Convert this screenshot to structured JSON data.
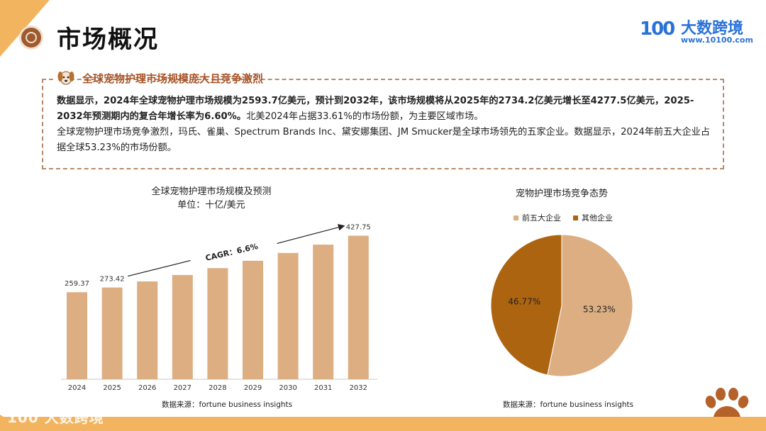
{
  "header": {
    "title": "市场概况",
    "logo_mark": "100",
    "logo_text": "大数跨境",
    "logo_url": "www.10100.com"
  },
  "info_box": {
    "title": "全球宠物护理市场规模庞大且竞争激烈",
    "para1_bold": "数据显示，2024年全球宠物护理市场规模为2593.7亿美元，预计到2032年，该市场规模将从2025年的2734.2亿美元增长至4277.5亿美元，2025-2032年预测期内的复合年增长率为6.60%。",
    "para1_rest": "北美2024年占据33.61%的市场份额，为主要区域市场。",
    "para2": "全球宠物护理市场竞争激烈，玛氏、雀巢、Spectrum Brands Inc、黛安娜集团、JM Smucker是全球市场领先的五家企业。数据显示，2024年前五大企业占据全球53.23%的市场份额。"
  },
  "colors": {
    "accent": "#f3b45f",
    "bar": "#dcae82",
    "pie_top5": "#dcae82",
    "pie_other": "#ad6410",
    "box_border": "#b98a6a",
    "box_title": "#a8562a"
  },
  "chart_data": [
    {
      "type": "bar",
      "title": "全球宠物护理市场规模及预测",
      "subtitle": "单位：十亿/美元",
      "categories": [
        "2024",
        "2025",
        "2026",
        "2027",
        "2028",
        "2029",
        "2030",
        "2031",
        "2032"
      ],
      "values": [
        259.37,
        273.42,
        291.5,
        310.7,
        331.2,
        353.1,
        376.4,
        401.2,
        427.75
      ],
      "data_labels": [
        "259.37",
        "273.42",
        "",
        "",
        "",
        "",
        "",
        "",
        "427.75"
      ],
      "annotation": "CAGR：6.6%",
      "ylim": [
        0,
        450
      ],
      "grid": false,
      "source": "数据来源：fortune business insights"
    },
    {
      "type": "pie",
      "title": "宠物护理市场竞争态势",
      "labels": [
        "前五大企业",
        "其他企业"
      ],
      "values": [
        53.23,
        46.77
      ],
      "data_labels": [
        "53.23%",
        "46.77%"
      ],
      "legend": "top",
      "source": "数据来源：fortune business insights"
    }
  ],
  "footer": {
    "watermark": "大数跨境"
  }
}
